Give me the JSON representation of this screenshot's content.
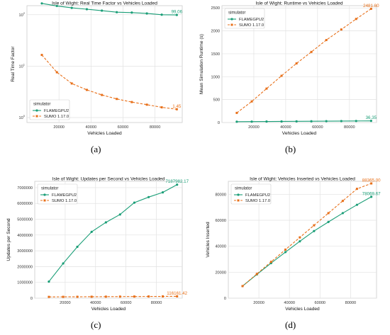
{
  "colors": {
    "flamegpu": "#1a9e77",
    "sumo": "#e8701a",
    "grid": "#e2e2e2",
    "plot_bg": "#ffffff",
    "axis_text": "#333333"
  },
  "panels": [
    {
      "label": "(a)"
    },
    {
      "label": "(b)"
    },
    {
      "label": "(c)"
    },
    {
      "label": "(d)"
    }
  ],
  "chart_data": [
    {
      "type": "line",
      "title": "Isle of Wight: Real Time Factor vs Vehicles Loaded",
      "xlabel": "Vehicles Loaded",
      "ylabel": "Real Time Factor",
      "yscale": "log",
      "xlim": [
        0,
        97000
      ],
      "ylim": [
        0.8,
        150
      ],
      "xticks": [
        20000,
        40000,
        60000,
        80000
      ],
      "xtick_labels": [
        "20000",
        "40000",
        "60000",
        "80000"
      ],
      "yticks": [
        1,
        10,
        100
      ],
      "ytick_labels": [
        "10^0",
        "10^1",
        "10^2"
      ],
      "grid": true,
      "legend": {
        "title": "simulator",
        "position": "bottom-left"
      },
      "x": [
        9300,
        18700,
        28000,
        37400,
        46800,
        56100,
        65500,
        74900,
        84200,
        93600
      ],
      "series": [
        {
          "name": "FLAMEGPU2",
          "color_key": "flamegpu",
          "marker": "circle",
          "dash": "solid",
          "values": [
            166,
            148,
            136,
            128,
            120,
            112,
            110,
            106,
            100,
            99.06
          ],
          "end_label": "99.06"
        },
        {
          "name": "SUMO 1.17.0",
          "color_key": "sumo",
          "marker": "square",
          "dash": "dashed",
          "values": [
            16.5,
            7.6,
            4.6,
            3.45,
            2.75,
            2.3,
            2.0,
            1.78,
            1.58,
            1.45
          ],
          "end_label": "1.45"
        }
      ]
    },
    {
      "type": "line",
      "title": "Isle of Wight: Runtime vs Vehicles Loaded",
      "xlabel": "Vehicles Loaded",
      "ylabel": "Mean Simulation Runtime (s)",
      "yscale": "linear",
      "xlim": [
        0,
        97000
      ],
      "ylim": [
        0,
        2550
      ],
      "xticks": [
        20000,
        40000,
        60000,
        80000
      ],
      "xtick_labels": [
        "20000",
        "40000",
        "60000",
        "80000"
      ],
      "yticks": [
        0,
        500,
        1000,
        1500,
        2000,
        2500
      ],
      "ytick_labels": [
        "0",
        "500",
        "1000",
        "1500",
        "2000",
        "2500"
      ],
      "grid": true,
      "legend": {
        "title": "simulator",
        "position": "top-left"
      },
      "x": [
        9300,
        18700,
        28000,
        37400,
        46800,
        56100,
        65500,
        74900,
        84200,
        93600
      ],
      "series": [
        {
          "name": "FLAMEGPU2",
          "color_key": "flamegpu",
          "marker": "circle",
          "dash": "solid",
          "values": [
            18,
            20,
            22,
            24,
            26,
            28,
            30,
            32,
            34,
            36.35
          ],
          "end_label": "36.35"
        },
        {
          "name": "SUMO 1.17.0",
          "color_key": "sumo",
          "marker": "square",
          "dash": "dashed",
          "values": [
            210,
            460,
            740,
            1020,
            1290,
            1540,
            1800,
            2030,
            2260,
            2481.8
          ],
          "end_label": "2481.80"
        }
      ]
    },
    {
      "type": "line",
      "title": "Isle of Wight: Updates per Second vs Vehicles Loaded",
      "xlabel": "Vehicles Loaded",
      "ylabel": "Updates per Second",
      "yscale": "linear",
      "xlim": [
        0,
        97000
      ],
      "ylim": [
        0,
        7400000
      ],
      "xticks": [
        20000,
        40000,
        60000,
        80000
      ],
      "xtick_labels": [
        "20000",
        "40000",
        "60000",
        "80000"
      ],
      "yticks": [
        0,
        1000000,
        2000000,
        3000000,
        4000000,
        5000000,
        6000000,
        7000000
      ],
      "ytick_labels": [
        "0",
        "1000000",
        "2000000",
        "3000000",
        "4000000",
        "5000000",
        "6000000",
        "7000000"
      ],
      "grid": true,
      "legend": {
        "title": "simulator",
        "position": "top-left"
      },
      "x": [
        9300,
        18700,
        28000,
        37400,
        46800,
        56100,
        65500,
        74900,
        84200,
        93600
      ],
      "series": [
        {
          "name": "FLAMEGPU2",
          "color_key": "flamegpu",
          "marker": "circle",
          "dash": "solid",
          "values": [
            1050000,
            2200000,
            3250000,
            4200000,
            4800000,
            5300000,
            6050000,
            6400000,
            6700000,
            7187982.17
          ],
          "end_label": "7187982.17"
        },
        {
          "name": "SUMO 1.17.0",
          "color_key": "sumo",
          "marker": "square",
          "dash": "dashed",
          "values": [
            82000,
            85000,
            88000,
            92000,
            96000,
            100000,
            104000,
            108000,
            112000,
            116161.42
          ],
          "end_label": "116161.42"
        }
      ]
    },
    {
      "type": "line",
      "title": "Isle of Wight: Vehicles Inserted vs Vehicles Loaded",
      "xlabel": "Vehicles Loaded",
      "ylabel": "Vehicles Inserted",
      "yscale": "linear",
      "xlim": [
        0,
        97000
      ],
      "ylim": [
        0,
        90000
      ],
      "xticks": [
        20000,
        40000,
        60000,
        80000
      ],
      "xtick_labels": [
        "20000",
        "40000",
        "60000",
        "80000"
      ],
      "yticks": [
        0,
        20000,
        40000,
        60000,
        80000
      ],
      "ytick_labels": [
        "0",
        "20000",
        "40000",
        "60000",
        "80000"
      ],
      "grid": true,
      "legend": {
        "title": "simulator",
        "position": "top-left"
      },
      "x": [
        9300,
        18700,
        28000,
        37400,
        46800,
        56100,
        65500,
        74900,
        84200,
        93600
      ],
      "series": [
        {
          "name": "FLAMEGPU2",
          "color_key": "flamegpu",
          "marker": "circle",
          "dash": "solid",
          "values": [
            9300,
            18300,
            27000,
            35500,
            43800,
            51700,
            58700,
            65500,
            71900,
            78069.67
          ],
          "end_label": "78069.67"
        },
        {
          "name": "SUMO 1.17.0",
          "color_key": "sumo",
          "marker": "square",
          "dash": "dashed",
          "values": [
            9300,
            18700,
            28000,
            37400,
            46800,
            56100,
            65500,
            74900,
            84200,
            88365.0
          ],
          "end_label": "88365.00"
        }
      ]
    }
  ]
}
